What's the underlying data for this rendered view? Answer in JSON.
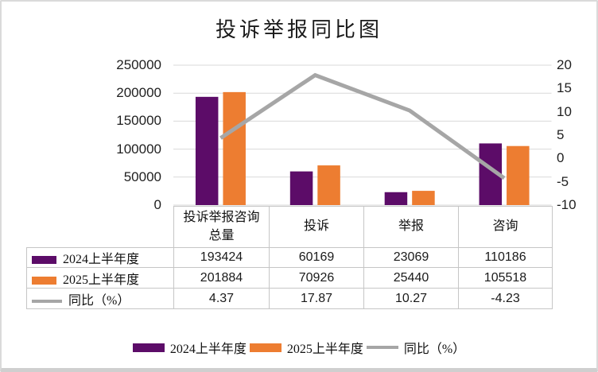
{
  "chart_data": {
    "type": "bar+line combo with data table",
    "title": "投诉举报同比图",
    "categories": [
      "投诉举报咨询总量",
      "投诉",
      "举报",
      "咨询"
    ],
    "series": [
      {
        "name": "2024上半年度",
        "type": "bar",
        "axis": "primary",
        "color": "#5C0C68",
        "values": [
          193424,
          60169,
          23069,
          110186
        ]
      },
      {
        "name": "2025上半年度",
        "type": "bar",
        "axis": "primary",
        "color": "#ED7D31",
        "values": [
          201884,
          70926,
          25440,
          105518
        ]
      },
      {
        "name": "同比（%）",
        "type": "line",
        "axis": "secondary",
        "color": "#A6A6A6",
        "values": [
          4.37,
          17.87,
          10.27,
          -4.23
        ]
      }
    ],
    "left_axis": {
      "min": 0,
      "max": 250000,
      "step": 50000,
      "ticks": [
        "250000",
        "200000",
        "150000",
        "100000",
        "50000",
        "0"
      ]
    },
    "right_axis": {
      "min": -10,
      "max": 20,
      "step": 5,
      "ticks": [
        "20",
        "15",
        "10",
        "5",
        "0",
        "-5",
        "-10"
      ]
    },
    "grid": true,
    "legend_position": "bottom",
    "data_table_shown": true
  },
  "colors": {
    "grid": "#D9D9D9",
    "table_border": "#C6C6C6",
    "text": "#1A1A1A"
  }
}
